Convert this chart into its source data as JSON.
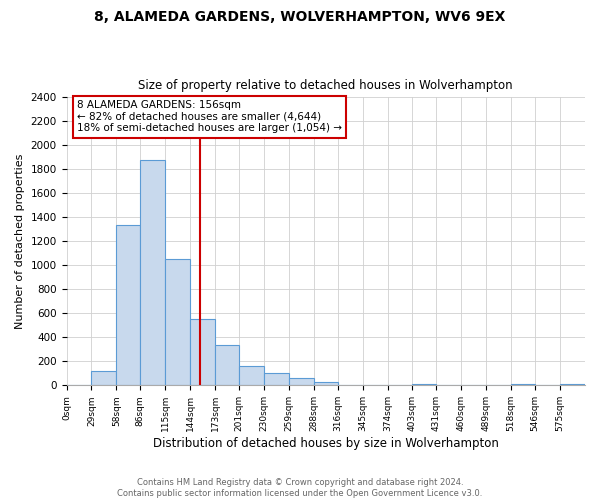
{
  "title": "8, ALAMEDA GARDENS, WOLVERHAMPTON, WV6 9EX",
  "subtitle": "Size of property relative to detached houses in Wolverhampton",
  "xlabel": "Distribution of detached houses by size in Wolverhampton",
  "ylabel": "Number of detached properties",
  "bin_labels": [
    "0sqm",
    "29sqm",
    "58sqm",
    "86sqm",
    "115sqm",
    "144sqm",
    "173sqm",
    "201sqm",
    "230sqm",
    "259sqm",
    "288sqm",
    "316sqm",
    "345sqm",
    "374sqm",
    "403sqm",
    "431sqm",
    "460sqm",
    "489sqm",
    "518sqm",
    "546sqm",
    "575sqm"
  ],
  "bar_heights": [
    0,
    120,
    1340,
    1880,
    1050,
    550,
    335,
    160,
    100,
    60,
    30,
    0,
    0,
    0,
    15,
    0,
    0,
    0,
    10,
    0,
    10
  ],
  "bar_color": "#c8d9ed",
  "bar_edge_color": "#5b9bd5",
  "property_line_x": 156,
  "property_line_color": "#cc0000",
  "annotation_text": "8 ALAMEDA GARDENS: 156sqm\n← 82% of detached houses are smaller (4,644)\n18% of semi-detached houses are larger (1,054) →",
  "annotation_box_color": "#ffffff",
  "annotation_box_edge_color": "#cc0000",
  "ylim": [
    0,
    2400
  ],
  "yticks": [
    0,
    200,
    400,
    600,
    800,
    1000,
    1200,
    1400,
    1600,
    1800,
    2000,
    2200,
    2400
  ],
  "footer_text": "Contains HM Land Registry data © Crown copyright and database right 2024.\nContains public sector information licensed under the Open Government Licence v3.0.",
  "bin_edges": [
    0,
    29,
    58,
    86,
    115,
    144,
    173,
    201,
    230,
    259,
    288,
    316,
    345,
    374,
    403,
    431,
    460,
    489,
    518,
    546,
    575,
    604
  ],
  "grid_color": "#d0d0d0",
  "background_color": "#ffffff"
}
